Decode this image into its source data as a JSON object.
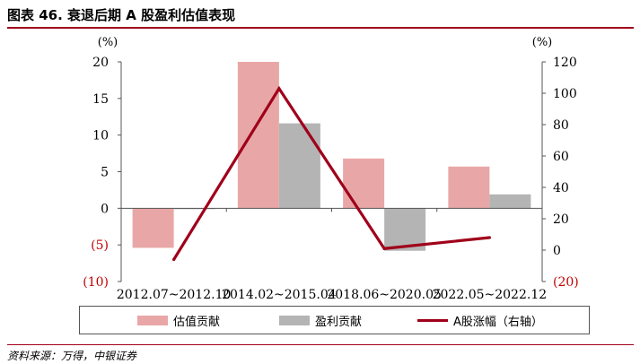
{
  "figure": {
    "title": "图表 46.  衰退后期 A 股盈利估值表现",
    "source": "资料来源：万得，中银证券"
  },
  "colors": {
    "valuation": "#e8a7a6",
    "earnings": "#b4b4b4",
    "index_line": "#a0001a",
    "negative_tick": "#c00000",
    "axis": "#555555",
    "accent": "#a0001a"
  },
  "chart_data": {
    "type": "bar",
    "categories": [
      "2012.07~2012.10",
      "2014.02~2015.04",
      "2018.06~2020.05",
      "2022.05~2022.12"
    ],
    "series": [
      {
        "name": "估值贡献",
        "type": "bar",
        "axis": "left",
        "values": [
          -5.4,
          20.0,
          6.8,
          5.7
        ]
      },
      {
        "name": "盈利贡献",
        "type": "bar",
        "axis": "left",
        "values": [
          -0.1,
          11.6,
          -5.8,
          1.9
        ]
      },
      {
        "name": "A股涨幅（右轴）",
        "type": "line",
        "axis": "right",
        "values": [
          -6,
          103,
          1,
          8
        ]
      }
    ],
    "left_axis": {
      "unit_label": "(%)",
      "ylim": [
        -10,
        20
      ],
      "ticks": [
        20,
        15,
        10,
        5,
        0,
        -5,
        -10
      ],
      "tick_labels": [
        "20",
        "15",
        "10",
        "5",
        "0",
        "(5)",
        "(10)"
      ]
    },
    "right_axis": {
      "unit_label": "(%)",
      "ylim": [
        -20,
        120
      ],
      "ticks": [
        120,
        100,
        80,
        60,
        40,
        20,
        0,
        -20
      ],
      "tick_labels": [
        "120",
        "100",
        "80",
        "60",
        "40",
        "20",
        "0",
        "(20)"
      ]
    },
    "grid": false,
    "legend_position": "bottom"
  }
}
